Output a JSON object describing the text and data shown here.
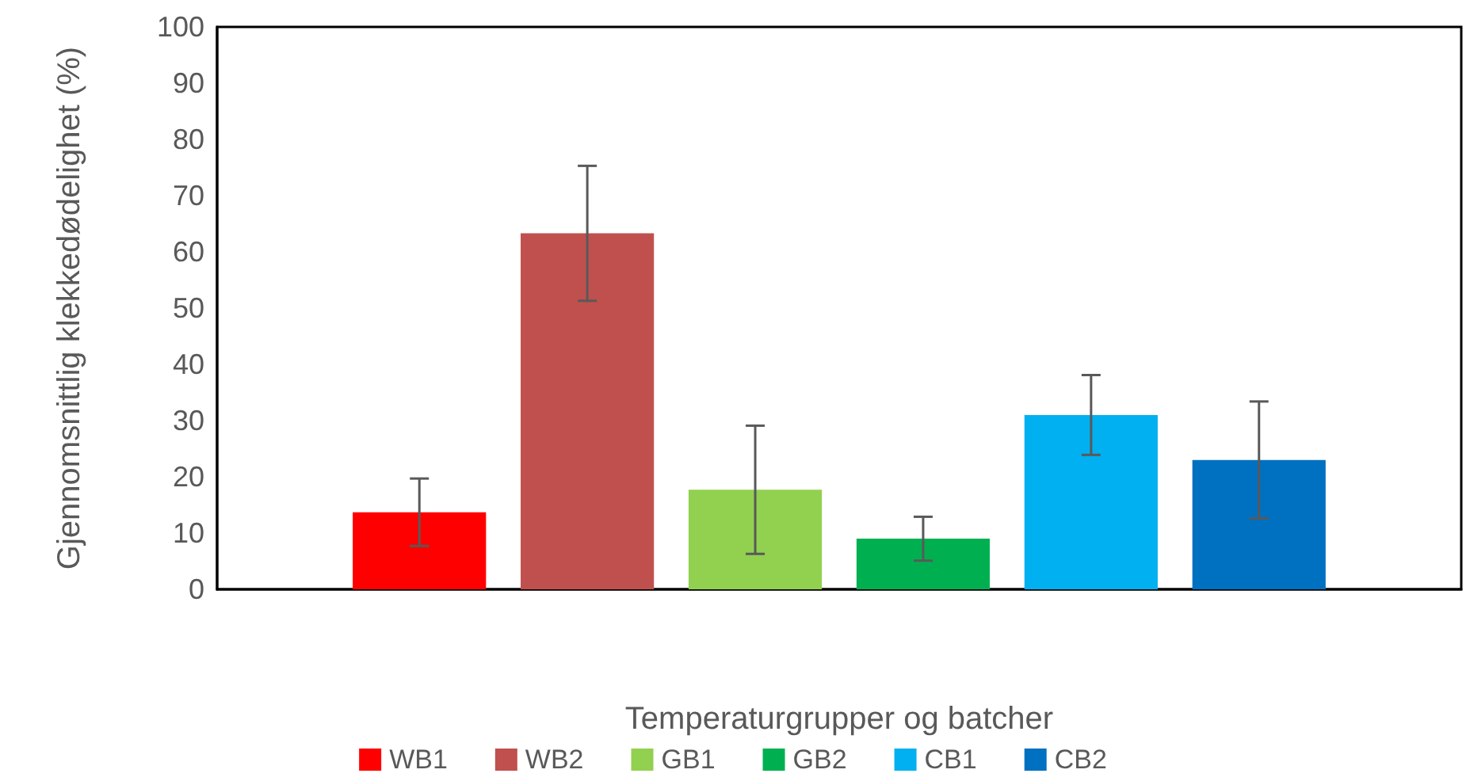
{
  "chart_data": {
    "type": "bar",
    "xlabel": "Temperaturgrupper og batcher",
    "ylabel": "Gjennomsnittlig klekkedødelighet (%)",
    "categories": [
      null
    ],
    "series": [
      {
        "name": "WB1",
        "color": "#ff0000",
        "values": [
          13.7
        ],
        "errors": [
          6.0
        ]
      },
      {
        "name": "WB2",
        "color": "#c0504d",
        "values": [
          63.3
        ],
        "errors": [
          12.0
        ]
      },
      {
        "name": "GB1",
        "color": "#92d050",
        "values": [
          17.7
        ],
        "errors": [
          11.4
        ]
      },
      {
        "name": "GB2",
        "color": "#00b050",
        "values": [
          9.0
        ],
        "errors": [
          3.9
        ]
      },
      {
        "name": "CB1",
        "color": "#00b0f0",
        "values": [
          31.0
        ],
        "errors": [
          7.1
        ]
      },
      {
        "name": "CB2",
        "color": "#0070c0",
        "values": [
          23.0
        ],
        "errors": [
          10.4
        ]
      }
    ],
    "ylim": [
      0,
      100
    ],
    "yticks": [
      0,
      10,
      20,
      30,
      40,
      50,
      60,
      70,
      80,
      90,
      100
    ],
    "grid": false,
    "legend": "bottom"
  }
}
